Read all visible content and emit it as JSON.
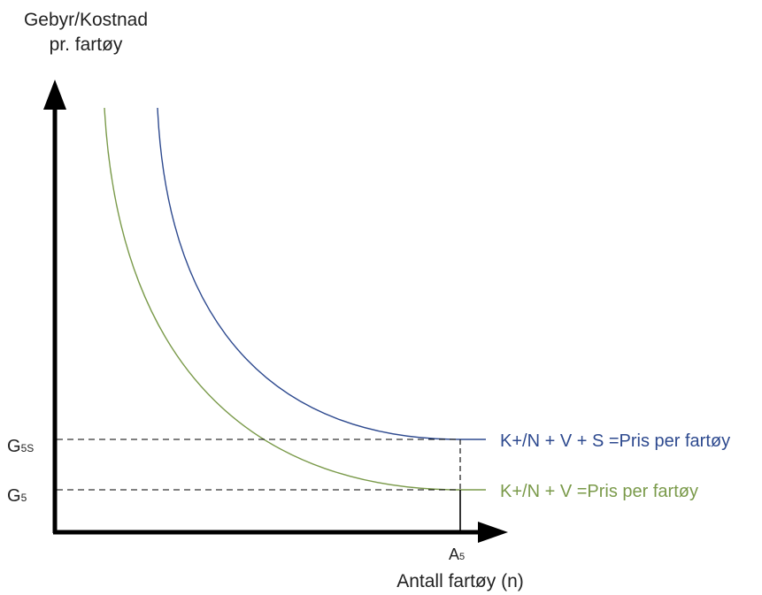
{
  "yAxis": {
    "line1": "Gebyr/Kostnad",
    "line2": "pr. fartøy"
  },
  "xAxis": {
    "label": "Antall fartøy (n)"
  },
  "ticks": {
    "g5s_base": "G",
    "g5s_sub": "5S",
    "g5_base": "G",
    "g5_sub": "5",
    "a5_base": "A",
    "a5_sub": "5"
  },
  "curves": {
    "upper": {
      "label": "K+/N + V + S =Pris per fartøy",
      "color": "#2e4a8f"
    },
    "lower": {
      "label": "K+/N + V =Pris per fartøy",
      "color": "#7a9a4a"
    }
  },
  "colors": {
    "axis": "#000000",
    "guide": "#000000"
  }
}
